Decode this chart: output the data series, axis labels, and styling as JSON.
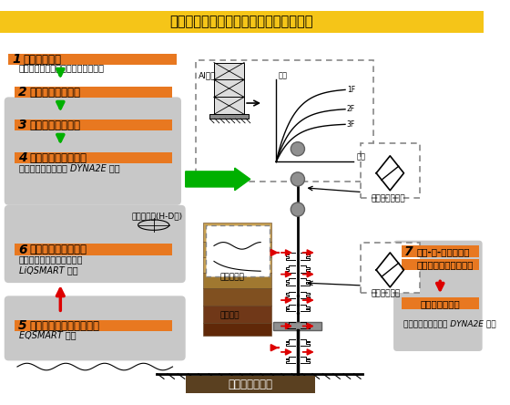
{
  "title": "東電設計（株）様の耐震診断手法の概要",
  "title_bg": "#F5C518",
  "bg_color": "#FFFFFF",
  "step1_text": "常時微動測定",
  "step1_sub": "減衰、剛性、二次部材の効果を評価",
  "step2_text": "解析モデルの設定",
  "step3_text": "静的荷重増分解析",
  "step4_text": "質点系モデルの設定",
  "step4_sub": "カスタマイズされた DYNA2E 使用",
  "step5_text": "検討用模擬地震波の設定",
  "step5_sub": "EQSMART 使用",
  "step6_text": "表層地盤の応答解析",
  "step6_sub1": "地盤非線形、液状化を考慮",
  "step6_sub2": "LiQSMART 使用",
  "step6_extra": "地盤非線形(H-D型)",
  "step7_line1": "建屋-杭-地盤連成系",
  "step7_line2": "モデルの地震応答解析",
  "step7_sub1": "杭の耐震性評価",
  "step7_sub2": "カスタマイズされた DYNA2E 使用",
  "label_kencho": "建屋の非線形性",
  "label_kui": "杭の非線形性",
  "label_jiban": "剛性低下率",
  "label_jibansp": "地盤バネ",
  "label_kogakuki": "工学的基盤位置",
  "label_ai": "AI分布",
  "label_kaju": "荷重",
  "label_heni": "変位",
  "orange": "#E87820",
  "green_arrow": "#00B000",
  "red_arrow": "#DD0000",
  "gray_box": "#C8C8C8",
  "soil1": "#C8A050",
  "soil2": "#B89040",
  "soil3": "#A07830",
  "soil4": "#805020",
  "soil5": "#703818",
  "soil6": "#602808",
  "kogakuki_bg": "#5A4020"
}
